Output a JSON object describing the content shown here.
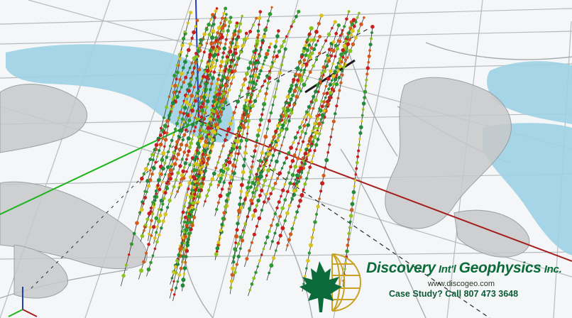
{
  "brand": {
    "name_part1": "Discovery",
    "name_part2": "Int'l",
    "name_part3": "Geophysics",
    "name_part4": "Inc.",
    "website": "www.discogeo.com",
    "call_to_action": "Case Study? Call 807 473 3648"
  },
  "scene": {
    "description_icons": [
      "maple-leaf-icon",
      "globe-icon",
      "axis-gizmo-icon"
    ],
    "colors": {
      "background": "#f3f5f6",
      "lake": "#9fd3e6",
      "terrain": "#c9cbcc",
      "grid": "#b8bcbe",
      "axis_x": "#a21f1f",
      "axis_y": "#22b322",
      "axis_z": "#1f3fb0",
      "logo_green": "#0b6b3a",
      "logo_gold": "#c9a224"
    }
  }
}
